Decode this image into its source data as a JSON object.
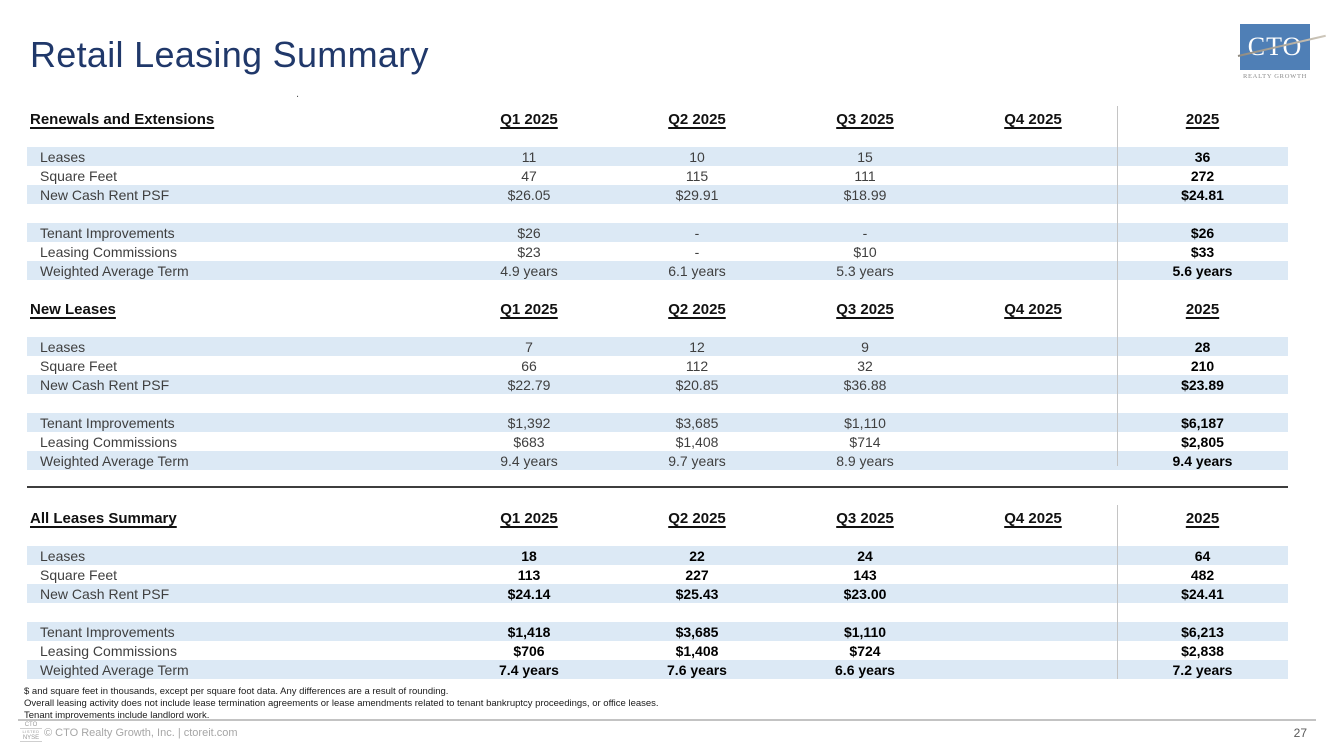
{
  "page": {
    "title": "Retail Leasing Summary",
    "stray_mark": "."
  },
  "logo": {
    "acronym": "CTO",
    "tagline": "REALTY GROWTH",
    "box_color": "#4f7fb6"
  },
  "columns": [
    "Q1 2025",
    "Q2 2025",
    "Q3 2025",
    "Q4 2025",
    "2025"
  ],
  "tables": [
    {
      "title": "Renewals and Extensions",
      "bold_values": false,
      "rows": [
        {
          "label": "Leases",
          "values": [
            "11",
            "10",
            "15",
            "",
            "36"
          ],
          "band": true
        },
        {
          "label": "Square Feet",
          "values": [
            "47",
            "115",
            "111",
            "",
            "272"
          ],
          "band": false
        },
        {
          "label": "New Cash Rent PSF",
          "values": [
            "$26.05",
            "$29.91",
            "$18.99",
            "",
            "$24.81"
          ],
          "band": true
        },
        {
          "spacer": true
        },
        {
          "label": "Tenant Improvements",
          "values": [
            "$26",
            "-",
            "-",
            "",
            "$26"
          ],
          "band": true
        },
        {
          "label": "Leasing Commissions",
          "values": [
            "$23",
            "-",
            "$10",
            "",
            "$33"
          ],
          "band": false
        },
        {
          "label": "Weighted Average Term",
          "values": [
            "4.9 years",
            "6.1 years",
            "5.3 years",
            "",
            "5.6 years"
          ],
          "band": true
        }
      ]
    },
    {
      "title": "New Leases",
      "bold_values": false,
      "rows": [
        {
          "label": "Leases",
          "values": [
            "7",
            "12",
            "9",
            "",
            "28"
          ],
          "band": true
        },
        {
          "label": "Square Feet",
          "values": [
            "66",
            "112",
            "32",
            "",
            "210"
          ],
          "band": false
        },
        {
          "label": "New Cash Rent PSF",
          "values": [
            "$22.79",
            "$20.85",
            "$36.88",
            "",
            "$23.89"
          ],
          "band": true
        },
        {
          "spacer": true
        },
        {
          "label": "Tenant Improvements",
          "values": [
            "$1,392",
            "$3,685",
            "$1,110",
            "",
            "$6,187"
          ],
          "band": true
        },
        {
          "label": "Leasing Commissions",
          "values": [
            "$683",
            "$1,408",
            "$714",
            "",
            "$2,805"
          ],
          "band": false
        },
        {
          "label": "Weighted Average Term",
          "values": [
            "9.4 years",
            "9.7 years",
            "8.9 years",
            "",
            "9.4 years"
          ],
          "band": true
        }
      ]
    },
    {
      "title": "All Leases Summary",
      "bold_values": true,
      "rows": [
        {
          "label": "Leases",
          "values": [
            "18",
            "22",
            "24",
            "",
            "64"
          ],
          "band": true
        },
        {
          "label": "Square Feet",
          "values": [
            "113",
            "227",
            "143",
            "",
            "482"
          ],
          "band": false
        },
        {
          "label": "New Cash Rent PSF",
          "values": [
            "$24.14",
            "$25.43",
            "$23.00",
            "",
            "$24.41"
          ],
          "band": true
        },
        {
          "spacer": true
        },
        {
          "label": "Tenant Improvements",
          "values": [
            "$1,418",
            "$3,685",
            "$1,110",
            "",
            "$6,213"
          ],
          "band": true
        },
        {
          "label": "Leasing Commissions",
          "values": [
            "$706",
            "$1,408",
            "$724",
            "",
            "$2,838"
          ],
          "band": false
        },
        {
          "label": "Weighted Average Term",
          "values": [
            "7.4 years",
            "7.6 years",
            "6.6 years",
            "",
            "7.2 years"
          ],
          "band": true
        }
      ]
    }
  ],
  "footnotes": [
    "$ and square feet in thousands, except per square foot data. Any differences are a result of rounding.",
    "Overall leasing activity does not include lease termination agreements or lease amendments related to tenant bankruptcy proceedings, or office leases.",
    "Tenant improvements include landlord work."
  ],
  "footer": {
    "listed_mark": [
      "CTO",
      "LISTED",
      "NYSE"
    ],
    "copyright": "© CTO Realty Growth, Inc. | ctoreit.com",
    "page_number": "27"
  }
}
